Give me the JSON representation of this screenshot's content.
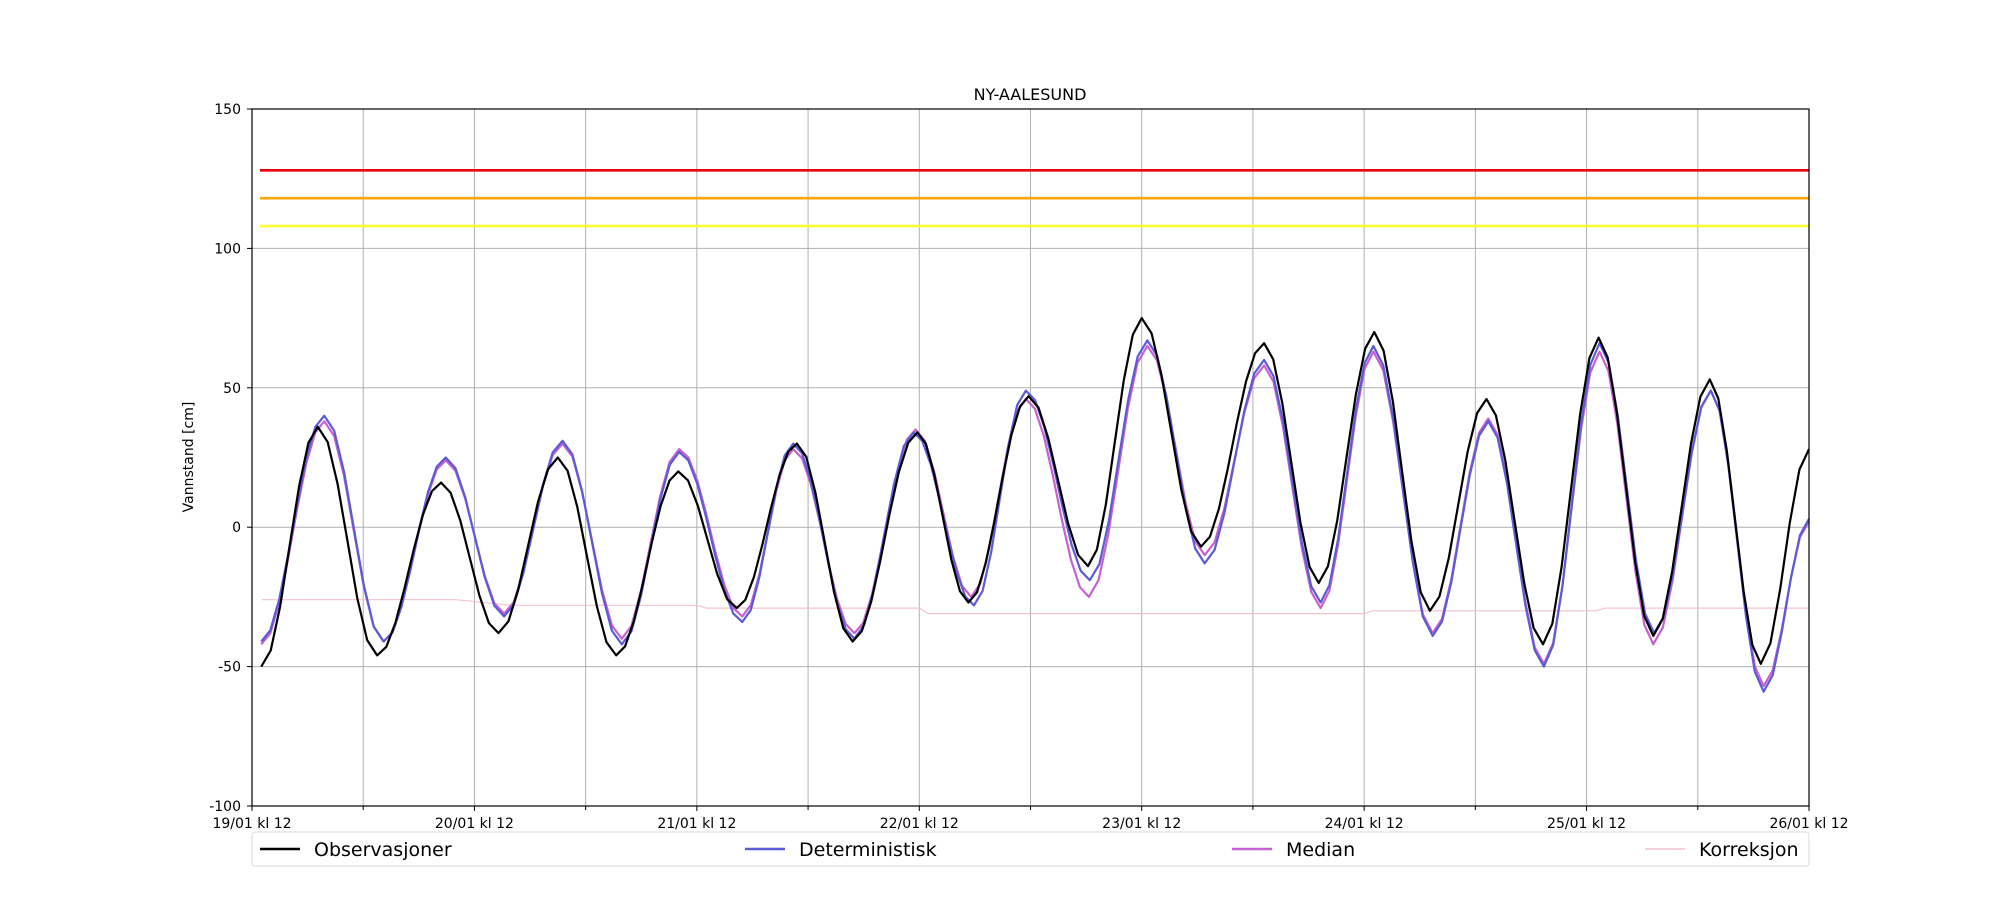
{
  "chart_data": {
    "type": "line",
    "title": "NY-AALESUND",
    "xlabel": "",
    "ylabel": "Vannstand [cm]",
    "ylim": [
      -100,
      150
    ],
    "yticks": [
      -100,
      -50,
      0,
      50,
      100,
      150
    ],
    "x_unit": "hours since 19/01 kl 12",
    "xlim": [
      0,
      168
    ],
    "xticks": [
      0,
      24,
      48,
      72,
      96,
      120,
      144,
      168
    ],
    "xtick_labels": [
      "19/01 kl 12",
      "20/01 kl 12",
      "21/01 kl 12",
      "22/01 kl 12",
      "23/01 kl 12",
      "24/01 kl 12",
      "25/01 kl 12",
      "26/01 kl 12"
    ],
    "minor_xticks": [
      12,
      36,
      60,
      84,
      108,
      132,
      156
    ],
    "grid": true,
    "legend_position": "bottom",
    "thresholds": [
      {
        "value": 128,
        "color": "#e8000b"
      },
      {
        "value": 118,
        "color": "#ffa500"
      },
      {
        "value": 108,
        "color": "#ffff33"
      }
    ],
    "series": [
      {
        "name": "Observasjoner",
        "color": "#000000",
        "anchors": [
          [
            1,
            -50
          ],
          [
            7.1,
            36
          ],
          [
            13.5,
            -46
          ],
          [
            20.4,
            16
          ],
          [
            26.6,
            -38
          ],
          [
            33,
            25
          ],
          [
            39.3,
            -46
          ],
          [
            46,
            20
          ],
          [
            52.3,
            -29
          ],
          [
            58.8,
            30
          ],
          [
            64.8,
            -41
          ],
          [
            71.8,
            34
          ],
          [
            77.3,
            -27
          ],
          [
            83.8,
            47
          ],
          [
            90.2,
            -14
          ],
          [
            96,
            75
          ],
          [
            102.4,
            -7
          ],
          [
            109.2,
            66
          ],
          [
            115.1,
            -20
          ],
          [
            121.1,
            70
          ],
          [
            127.1,
            -30
          ],
          [
            133.2,
            46
          ],
          [
            139.3,
            -42
          ],
          [
            145.3,
            68
          ],
          [
            151.2,
            -39
          ],
          [
            157.3,
            53
          ],
          [
            162.8,
            -49
          ],
          [
            168,
            28
          ]
        ]
      },
      {
        "name": "Deterministisk",
        "color": "#5b5bd6",
        "anchors": [
          [
            1,
            -41
          ],
          [
            7.8,
            40
          ],
          [
            14.2,
            -41
          ],
          [
            20.9,
            25
          ],
          [
            27.2,
            -32
          ],
          [
            33.5,
            31
          ],
          [
            39.9,
            -42
          ],
          [
            46.1,
            27
          ],
          [
            52.9,
            -34
          ],
          [
            58.4,
            30
          ],
          [
            65,
            -40
          ],
          [
            71.4,
            34
          ],
          [
            77.9,
            -28
          ],
          [
            83.5,
            49
          ],
          [
            90.4,
            -19
          ],
          [
            96.6,
            67
          ],
          [
            102.8,
            -13
          ],
          [
            109.2,
            60
          ],
          [
            115.3,
            -27
          ],
          [
            121,
            65
          ],
          [
            127.4,
            -39
          ],
          [
            133.4,
            38
          ],
          [
            139.4,
            -50
          ],
          [
            145.4,
            66
          ],
          [
            151.3,
            -38
          ],
          [
            157.4,
            49
          ],
          [
            163.1,
            -59
          ],
          [
            168,
            3
          ]
        ]
      },
      {
        "name": "Median",
        "color": "#c661cf",
        "anchors": [
          [
            1,
            -42
          ],
          [
            7.8,
            38
          ],
          [
            14.2,
            -41
          ],
          [
            20.9,
            24
          ],
          [
            27.2,
            -31
          ],
          [
            33.5,
            30
          ],
          [
            39.9,
            -40
          ],
          [
            46.1,
            28
          ],
          [
            52.9,
            -32
          ],
          [
            58.4,
            28
          ],
          [
            65,
            -38
          ],
          [
            71.6,
            35
          ],
          [
            77.6,
            -25
          ],
          [
            83.5,
            46
          ],
          [
            90.3,
            -25
          ],
          [
            96.6,
            65
          ],
          [
            102.8,
            -10
          ],
          [
            109.2,
            58
          ],
          [
            115.3,
            -29
          ],
          [
            121,
            63
          ],
          [
            127.4,
            -38
          ],
          [
            133.4,
            39
          ],
          [
            139.4,
            -49
          ],
          [
            145.4,
            63
          ],
          [
            151.2,
            -42
          ],
          [
            157.4,
            49
          ],
          [
            163.1,
            -57
          ],
          [
            168,
            2
          ]
        ]
      },
      {
        "name": "Korreksjon",
        "color": "#f4c2cf",
        "points": [
          [
            1,
            -26
          ],
          [
            22,
            -26
          ],
          [
            28,
            -28
          ],
          [
            48,
            -28
          ],
          [
            49,
            -29
          ],
          [
            72,
            -29
          ],
          [
            73,
            -31
          ],
          [
            120,
            -31
          ],
          [
            121,
            -30
          ],
          [
            145,
            -30
          ],
          [
            146,
            -29
          ],
          [
            168,
            -29
          ]
        ]
      }
    ]
  }
}
